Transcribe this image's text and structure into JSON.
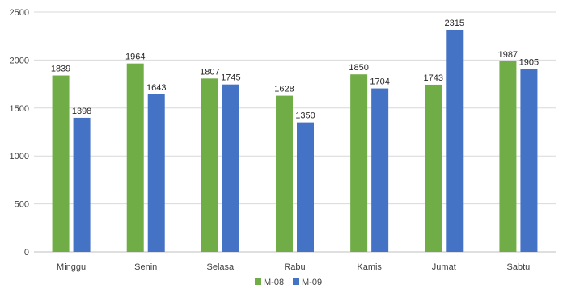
{
  "chart_data": {
    "type": "bar",
    "categories": [
      "Minggu",
      "Senin",
      "Selasa",
      "Rabu",
      "Kamis",
      "Jumat",
      "Sabtu"
    ],
    "series": [
      {
        "name": "M-08",
        "color": "#70ad47",
        "values": [
          1839,
          1964,
          1807,
          1628,
          1850,
          1743,
          1987
        ]
      },
      {
        "name": "M-09",
        "color": "#4472c4",
        "values": [
          1398,
          1643,
          1745,
          1350,
          1704,
          2315,
          1905
        ]
      }
    ],
    "yticks": [
      0,
      500,
      1000,
      1500,
      2000,
      2500
    ],
    "ylim": [
      0,
      2500
    ],
    "grid": true,
    "legend_position": "bottom",
    "data_labels": true
  }
}
